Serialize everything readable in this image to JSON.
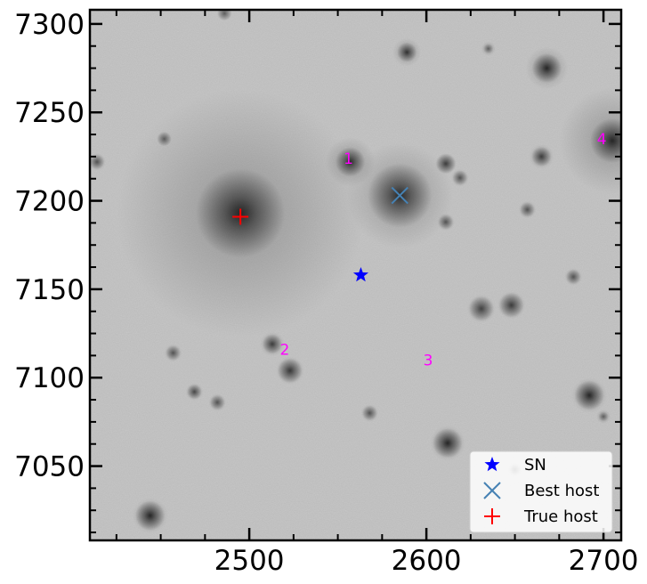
{
  "chart_data": {
    "type": "scatter",
    "title": "",
    "xlabel": "",
    "ylabel": "",
    "xlim": [
      2410,
      2710
    ],
    "ylim": [
      7008,
      7308
    ],
    "xticks": [
      2500,
      2600,
      2700
    ],
    "yticks": [
      7050,
      7100,
      7150,
      7200,
      7250,
      7300
    ],
    "xtick_labels": [
      "2500",
      "2600",
      "2700"
    ],
    "ytick_labels": [
      "7050",
      "7100",
      "7150",
      "7200",
      "7250",
      "7300"
    ],
    "background": "grayscale galaxy image",
    "grid": false,
    "legend_position": "lower-right",
    "series": [
      {
        "name": "SN",
        "marker": "star",
        "color": "#0000ff",
        "x": [
          2563
        ],
        "y": [
          7158
        ]
      },
      {
        "name": "Best host",
        "marker": "x",
        "color": "#4682b4",
        "x": [
          2585
        ],
        "y": [
          7203
        ]
      },
      {
        "name": "True host",
        "marker": "plus",
        "color": "#ff0000",
        "x": [
          2495
        ],
        "y": [
          7191
        ]
      }
    ],
    "annotations": [
      {
        "text": "1",
        "x": 2556,
        "y": 7224
      },
      {
        "text": "2",
        "x": 2520,
        "y": 7116
      },
      {
        "text": "3",
        "x": 2601,
        "y": 7110
      },
      {
        "text": "4",
        "x": 2699,
        "y": 7235
      }
    ],
    "blobs": [
      {
        "x": 2495,
        "y": 7193,
        "r": 18,
        "a": 1.0,
        "halo": 70
      },
      {
        "x": 2585,
        "y": 7203,
        "r": 13,
        "a": 0.95,
        "halo": 30
      },
      {
        "x": 2557,
        "y": 7222,
        "r": 6,
        "a": 0.95,
        "halo": 14
      },
      {
        "x": 2705,
        "y": 7234,
        "r": 9,
        "a": 1.0,
        "halo": 30
      },
      {
        "x": 2668,
        "y": 7275,
        "r": 6,
        "a": 1.0,
        "halo": 12
      },
      {
        "x": 2589,
        "y": 7284,
        "r": 4,
        "a": 0.9,
        "halo": 8
      },
      {
        "x": 2665,
        "y": 7225,
        "r": 4,
        "a": 0.8,
        "halo": 7
      },
      {
        "x": 2611,
        "y": 7221,
        "r": 4,
        "a": 0.8,
        "halo": 6
      },
      {
        "x": 2619,
        "y": 7213,
        "r": 3,
        "a": 0.6,
        "halo": 5
      },
      {
        "x": 2611,
        "y": 7188,
        "r": 3,
        "a": 0.6,
        "halo": 5
      },
      {
        "x": 2657,
        "y": 7195,
        "r": 3,
        "a": 0.6,
        "halo": 5
      },
      {
        "x": 2683,
        "y": 7157,
        "r": 3,
        "a": 0.6,
        "halo": 5
      },
      {
        "x": 2631,
        "y": 7139,
        "r": 5,
        "a": 0.75,
        "halo": 8
      },
      {
        "x": 2648,
        "y": 7141,
        "r": 5,
        "a": 0.8,
        "halo": 8
      },
      {
        "x": 2513,
        "y": 7119,
        "r": 4,
        "a": 0.8,
        "halo": 7
      },
      {
        "x": 2523,
        "y": 7104,
        "r": 5,
        "a": 0.85,
        "halo": 8
      },
      {
        "x": 2612,
        "y": 7063,
        "r": 6,
        "a": 1.0,
        "halo": 10
      },
      {
        "x": 2692,
        "y": 7090,
        "r": 6,
        "a": 1.0,
        "halo": 10
      },
      {
        "x": 2444,
        "y": 7022,
        "r": 6,
        "a": 1.0,
        "halo": 10
      },
      {
        "x": 2469,
        "y": 7092,
        "r": 3,
        "a": 0.7,
        "halo": 5
      },
      {
        "x": 2482,
        "y": 7086,
        "r": 3,
        "a": 0.6,
        "halo": 5
      },
      {
        "x": 2457,
        "y": 7114,
        "r": 3,
        "a": 0.6,
        "halo": 5
      },
      {
        "x": 2568,
        "y": 7080,
        "r": 3,
        "a": 0.6,
        "halo": 5
      },
      {
        "x": 2452,
        "y": 7235,
        "r": 3,
        "a": 0.5,
        "halo": 4
      },
      {
        "x": 2414,
        "y": 7222,
        "r": 3,
        "a": 0.6,
        "halo": 5
      },
      {
        "x": 2486,
        "y": 7306,
        "r": 3,
        "a": 0.5,
        "halo": 4
      },
      {
        "x": 2635,
        "y": 7286,
        "r": 2,
        "a": 0.5,
        "halo": 4
      },
      {
        "x": 2700,
        "y": 7078,
        "r": 2,
        "a": 0.5,
        "halo": 4
      },
      {
        "x": 2650,
        "y": 7048,
        "r": 2,
        "a": 0.5,
        "halo": 4
      }
    ]
  }
}
